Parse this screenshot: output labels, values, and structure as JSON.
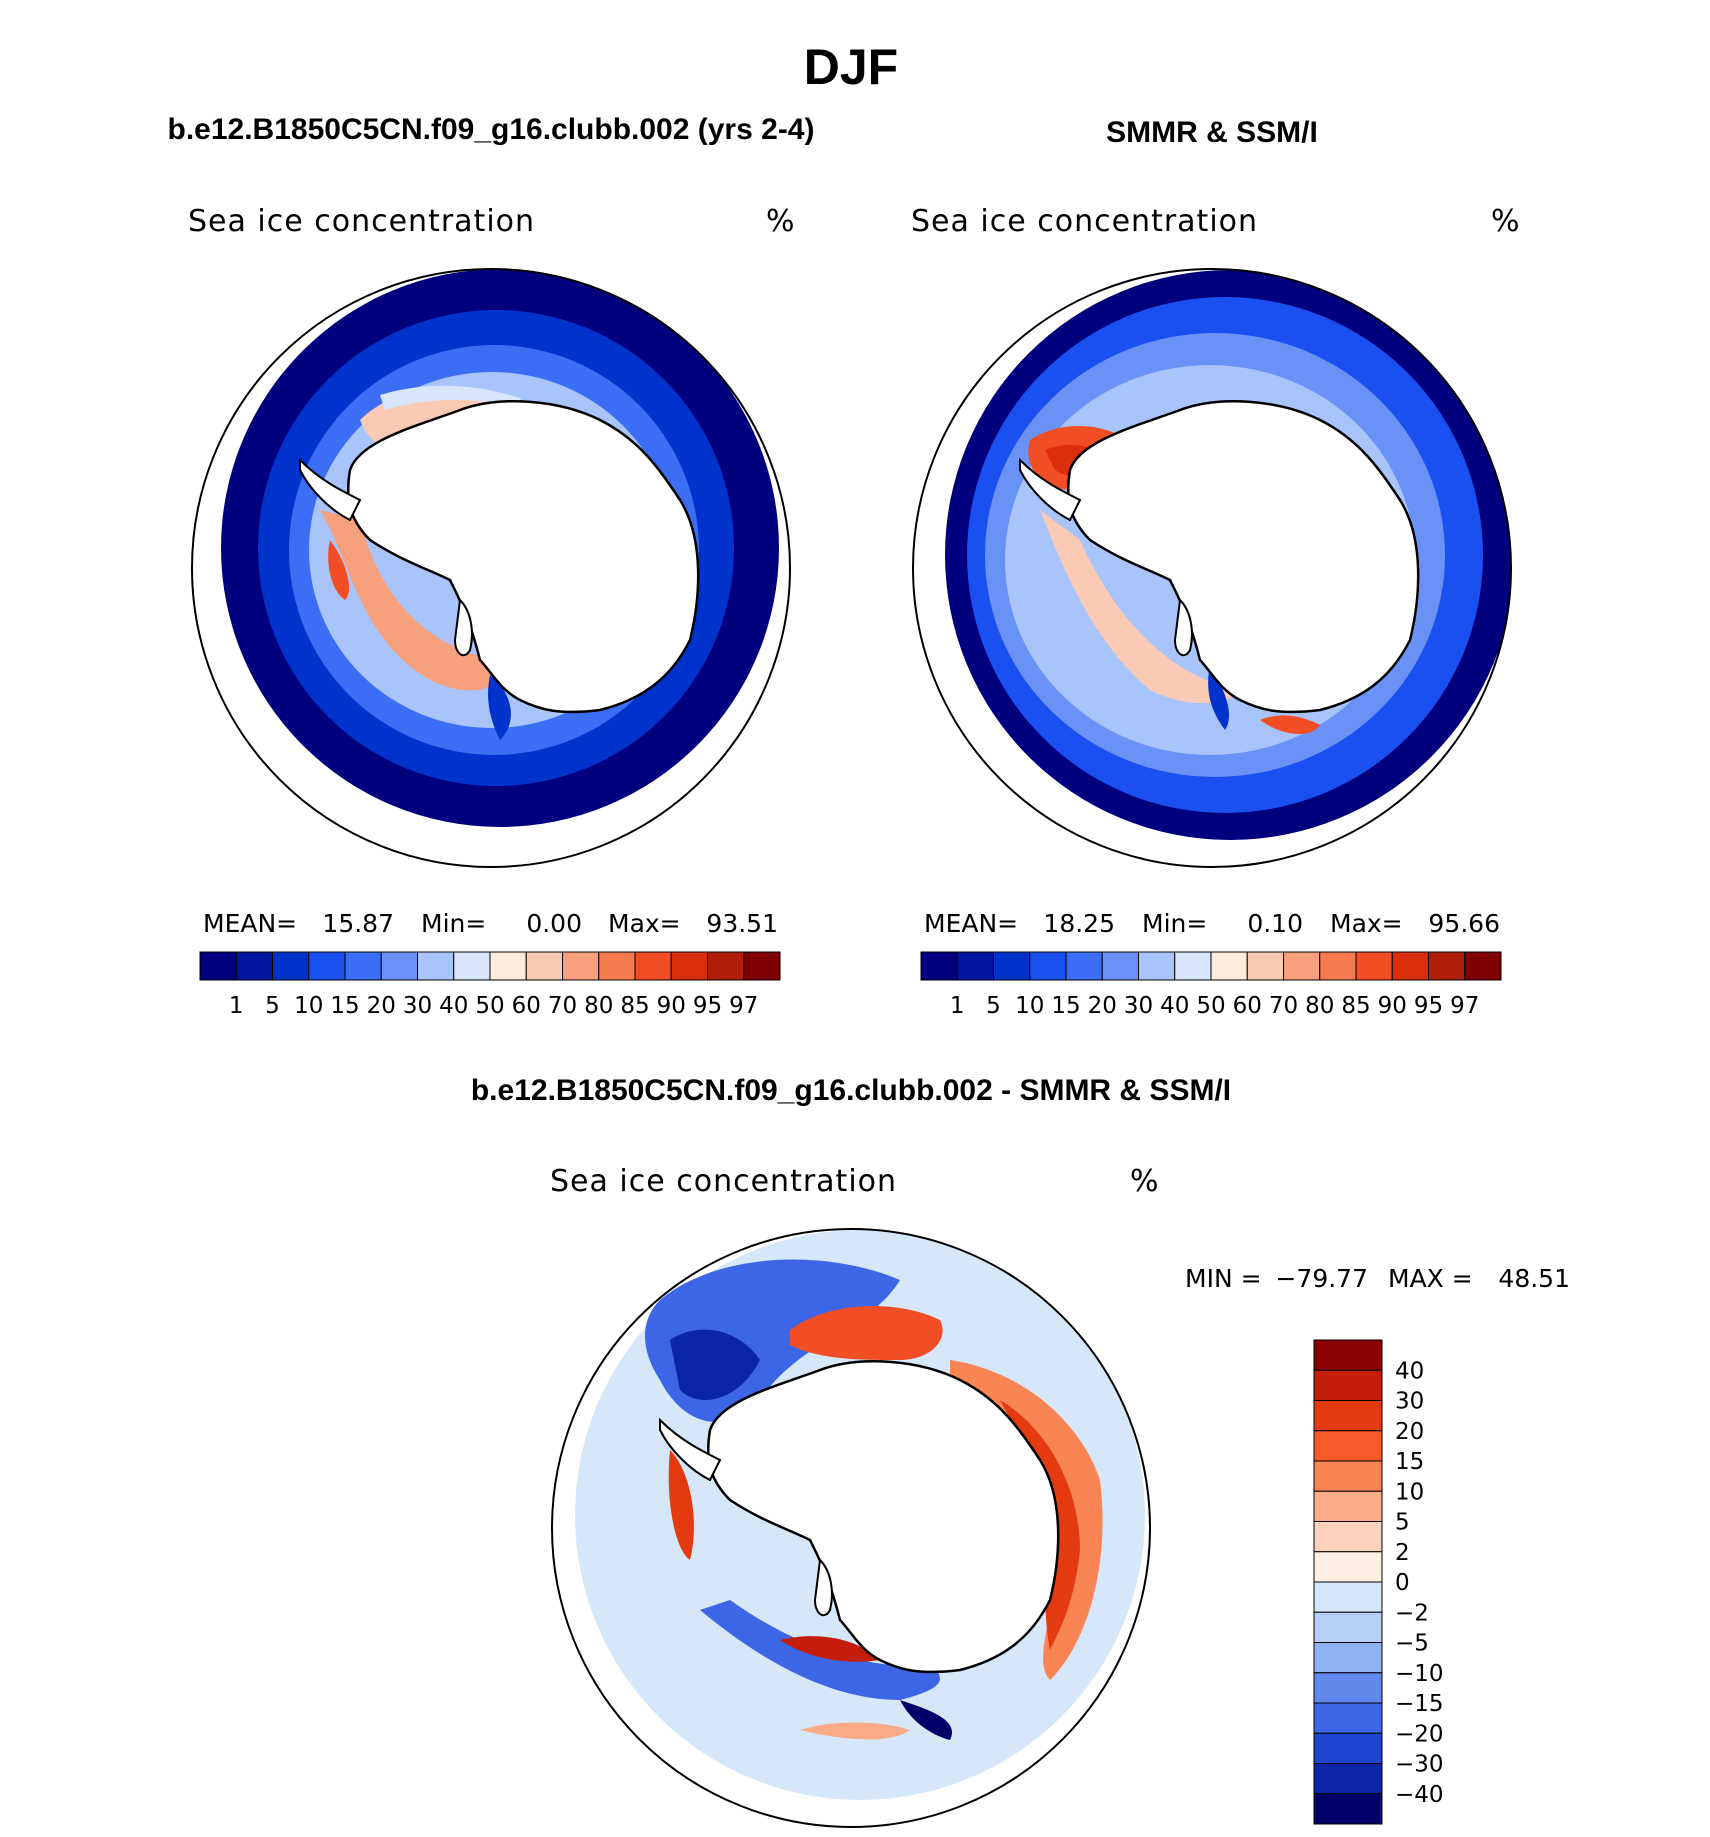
{
  "title": "DJF",
  "panels": [
    {
      "heading": "b.e12.B1850C5CN.f09_g16.clubb.002 (yrs 2-4)",
      "field_label": "Sea ice concentration",
      "unit": "%",
      "stats": {
        "mean_label": "MEAN=",
        "mean": "15.87",
        "min_label": "Min=",
        "min": "0.00",
        "max_label": "Max=",
        "max": "93.51"
      }
    },
    {
      "heading": "SMMR & SSM/I",
      "field_label": "Sea ice concentration",
      "unit": "%",
      "stats": {
        "mean_label": "MEAN=",
        "mean": "18.25",
        "min_label": "Min=",
        "min": "0.10",
        "max_label": "Max=",
        "max": "95.66"
      }
    },
    {
      "heading": "b.e12.B1850C5CN.f09_g16.clubb.002 - SMMR & SSM/I",
      "field_label": "Sea ice concentration",
      "unit": "%",
      "stats": {
        "min_label": "MIN =",
        "min": "−79.77",
        "max_label": "MAX =",
        "max": "48.51"
      }
    }
  ],
  "colorbar_concentration": {
    "tick_labels": [
      "1",
      "5",
      "10",
      "15",
      "20",
      "30",
      "40",
      "50",
      "60",
      "70",
      "80",
      "85",
      "90",
      "95",
      "97"
    ],
    "colors": [
      "#00007f",
      "#0015a0",
      "#0033cc",
      "#1a4ff0",
      "#3c6ef5",
      "#6a91f5",
      "#a8c4fa",
      "#d7e6fb",
      "#fdebdc",
      "#fbcab5",
      "#f7a07e",
      "#f57a4e",
      "#f24e25",
      "#db2e0c",
      "#b01d08",
      "#7f0000"
    ]
  },
  "colorbar_difference": {
    "tick_labels": [
      "40",
      "30",
      "20",
      "15",
      "10",
      "5",
      "2",
      "0",
      "−2",
      "−5",
      "−10",
      "−15",
      "−20",
      "−30",
      "−40"
    ],
    "colors": [
      "#8b0000",
      "#c41e0a",
      "#e33a10",
      "#f75a28",
      "#f98555",
      "#fbab88",
      "#fdd2bd",
      "#fdeee2",
      "#d6e7fa",
      "#b6d0f8",
      "#8fb2f3",
      "#6189ec",
      "#3c66e6",
      "#1e46d2",
      "#0a25a8",
      "#01006b"
    ]
  }
}
